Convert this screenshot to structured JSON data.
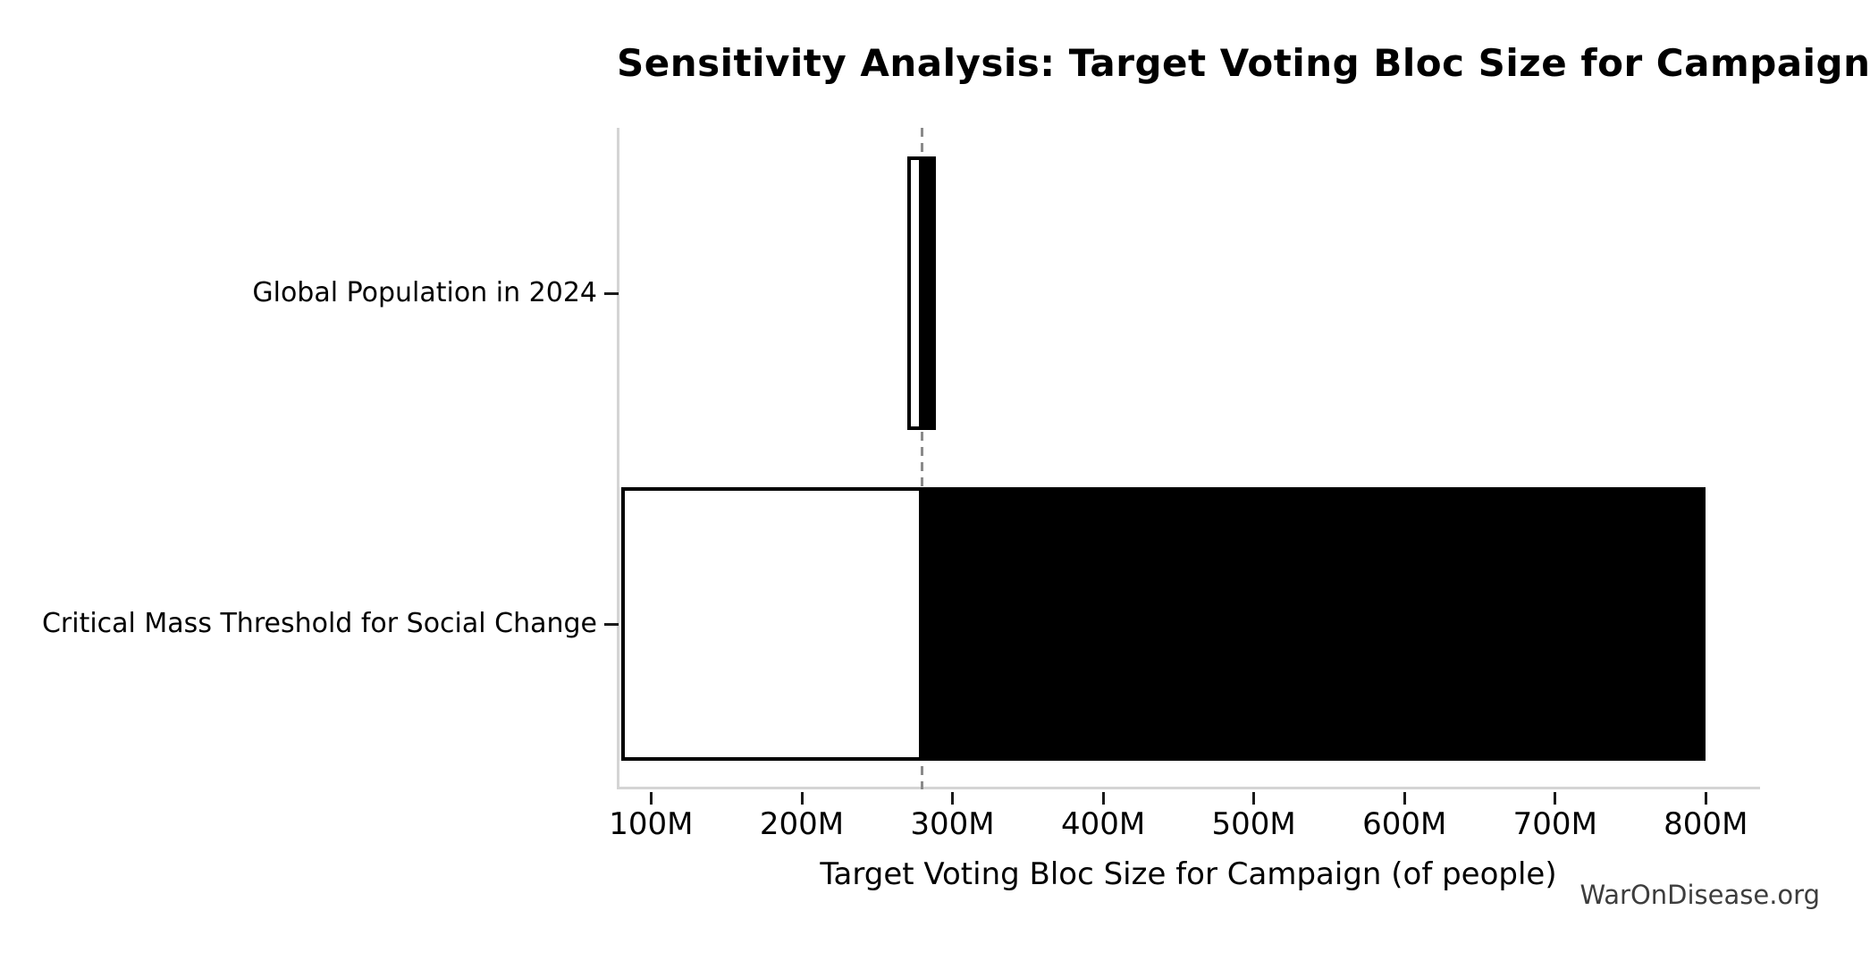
{
  "figure": {
    "watermark": "WarOnDisease.org"
  },
  "chart_data": {
    "type": "bar",
    "subtype": "tornado-sensitivity",
    "orientation": "horizontal",
    "title": "Sensitivity Analysis: Target Voting Bloc Size for Campaign",
    "xlabel": "Target Voting Bloc Size for Campaign (of people)",
    "ylabel": "",
    "unit": "people, millions",
    "baseline_m": 280,
    "categories": [
      "Global Population in 2024",
      "Critical Mass Threshold for Social Change"
    ],
    "bars": [
      {
        "category": "Global Population in 2024",
        "low_m": 270,
        "baseline_m": 280,
        "high_m": 289
      },
      {
        "category": "Critical Mass Threshold for Social Change",
        "low_m": 80,
        "baseline_m": 280,
        "high_m": 800
      }
    ],
    "x_ticks": [
      {
        "value_m": 100,
        "label": "100M"
      },
      {
        "value_m": 200,
        "label": "200M"
      },
      {
        "value_m": 300,
        "label": "300M"
      },
      {
        "value_m": 400,
        "label": "400M"
      },
      {
        "value_m": 500,
        "label": "500M"
      },
      {
        "value_m": 600,
        "label": "600M"
      },
      {
        "value_m": 700,
        "label": "700M"
      },
      {
        "value_m": 800,
        "label": "800M"
      },
      {
        "value_m": 0,
        "label": ""
      }
    ],
    "xlim_m": [
      79,
      836
    ],
    "grid": false,
    "legend": false,
    "colors": {
      "below_baseline_fill": "#ffffff",
      "above_baseline_fill": "#000000",
      "bar_edge": "#000000",
      "baseline_dash": "#8a8a8a",
      "spine": "#d4d4d4",
      "tick_mark": "#1a1a1a",
      "text": "#000000",
      "watermark_text": "#3d3d3d",
      "background": "#ffffff"
    }
  }
}
